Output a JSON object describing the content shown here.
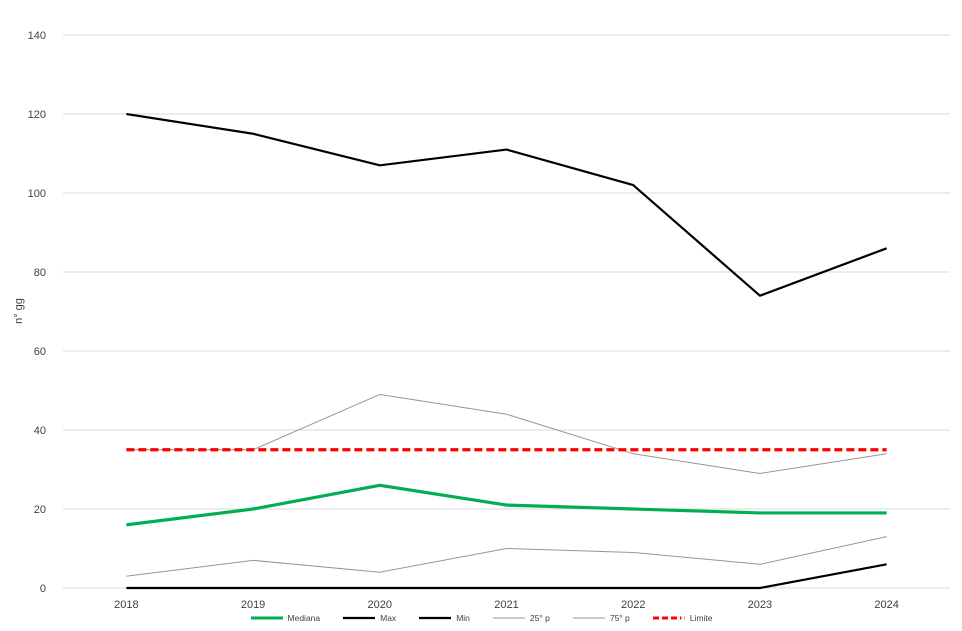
{
  "chart_data": {
    "type": "line",
    "title": "",
    "xlabel": "",
    "ylabel": "n° gg",
    "ylim": [
      0,
      140
    ],
    "ytick_step": 20,
    "grid": "horizontal-only",
    "gridline_color": "#D9D9D9",
    "legend_position": "bottom-center",
    "categories": [
      "2018",
      "2019",
      "2020",
      "2021",
      "2022",
      "2023",
      "2024"
    ],
    "series": [
      {
        "name": "Mediana",
        "values": [
          16,
          20,
          26,
          21,
          20,
          19,
          19
        ],
        "color": "#00B050",
        "width": 3.2,
        "dash": "",
        "z": 6
      },
      {
        "name": "Max",
        "values": [
          120,
          115,
          107,
          111,
          102,
          74,
          86
        ],
        "color": "#000000",
        "width": 2.2,
        "dash": "",
        "z": 3
      },
      {
        "name": "Min",
        "values": [
          0,
          0,
          0,
          0,
          0,
          0,
          6
        ],
        "color": "#000000",
        "width": 2.2,
        "dash": "",
        "z": 4
      },
      {
        "name": "25° p",
        "values": [
          3,
          7,
          4,
          10,
          9,
          6,
          13
        ],
        "color": "#969696",
        "width": 1,
        "dash": "",
        "z": 1
      },
      {
        "name": "75° p",
        "values": [
          35,
          35,
          49,
          44,
          34,
          29,
          34
        ],
        "color": "#969696",
        "width": 1,
        "dash": "",
        "z": 2
      },
      {
        "name": "Limite",
        "values": [
          35,
          35,
          35,
          35,
          35,
          35,
          35
        ],
        "color": "#FF0000",
        "width": 3.2,
        "dash": "8 4",
        "legend_dash": "6 3 6 3 6 3 1.5 3",
        "z": 5
      }
    ]
  }
}
